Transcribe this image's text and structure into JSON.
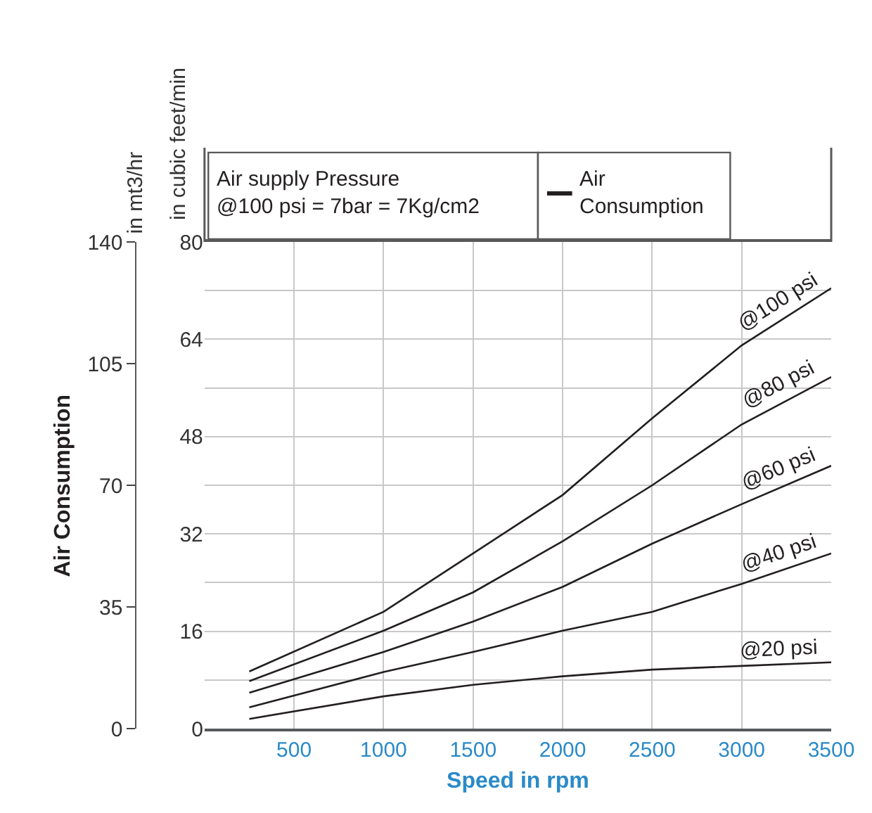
{
  "chart_data": {
    "type": "line",
    "xlabel": "Speed in rpm",
    "ylabel": "in cubic feet/min",
    "y2label": "in mt3/hr",
    "annotations": [
      "Air Consumption",
      "Air supply Pressure\n@100 psi = 7bar = 7Kg/cm2",
      "Air\nConsumption"
    ],
    "x": [
      250,
      1000,
      1500,
      2000,
      2500,
      3000,
      3500
    ],
    "series": [
      {
        "name": "@100 psi",
        "color": "#231f20",
        "values": [
          9.4,
          19.2,
          28.8,
          38.4,
          51,
          63,
          72.4
        ]
      },
      {
        "name": "@80 psi",
        "color": "#231f20",
        "values": [
          7.8,
          16.1,
          22.4,
          30.8,
          40,
          50,
          57.8
        ]
      },
      {
        "name": "@60 psi",
        "color": "#231f20",
        "values": [
          5.9,
          12.6,
          17.6,
          23.3,
          30.4,
          36.9,
          43.2
        ]
      },
      {
        "name": "@40 psi",
        "color": "#231f20",
        "values": [
          3.5,
          9.3,
          12.6,
          16.1,
          19.2,
          23.8,
          28.8
        ]
      },
      {
        "name": "@20 psi",
        "color": "#231f20",
        "values": [
          1.6,
          5.3,
          7.2,
          8.6,
          9.7,
          10.3,
          10.9
        ]
      }
    ],
    "xlim": [
      0,
      3500
    ],
    "xticks": [
      500,
      1000,
      1500,
      2000,
      2500,
      3000,
      3500
    ],
    "ylim": [
      0,
      80
    ],
    "yticks": [
      0,
      {
        "value": 8,
        "label": null
      },
      16,
      {
        "value": 24,
        "label": null
      },
      32,
      {
        "value": 40,
        "label": null
      },
      48,
      {
        "value": 56,
        "label": null
      },
      64,
      {
        "value": 72,
        "label": null
      },
      80
    ],
    "y2lim": [
      0,
      140
    ],
    "y2ticks": [
      0,
      35,
      70,
      105,
      140
    ],
    "grid": true,
    "legend": false,
    "marker": "none",
    "line_style": "solid"
  }
}
